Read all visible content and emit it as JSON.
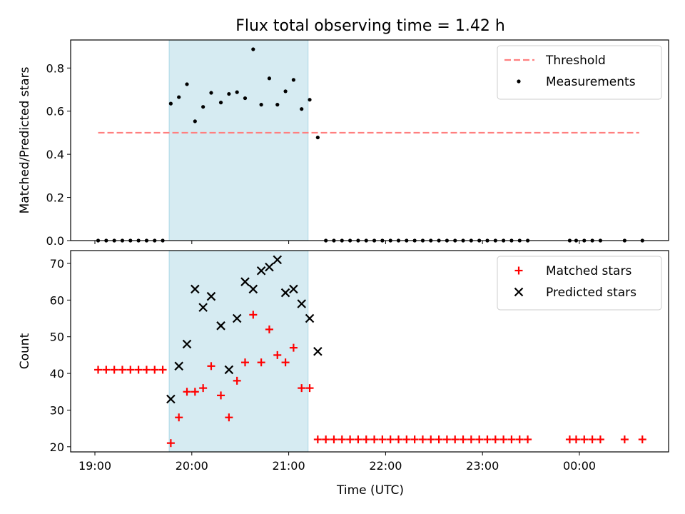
{
  "chart_data": {
    "type": "scatter",
    "title": "Flux total observing time = 1.42 h",
    "xlabel": "Time (UTC)",
    "x_ticks": [
      "19:00",
      "20:00",
      "21:00",
      "22:00",
      "23:00",
      "00:00"
    ],
    "shaded_interval": [
      "19:46",
      "21:12"
    ],
    "panels": [
      {
        "ylabel": "Matched/Predicted stars",
        "ylim": [
          0,
          0.93
        ],
        "y_ticks": [
          "0.0",
          "0.2",
          "0.4",
          "0.6",
          "0.8"
        ],
        "legend_position": "upper right",
        "threshold": {
          "name": "Threshold",
          "value": 0.5,
          "x_range": [
            "19:02",
            "00:37"
          ],
          "color": "#ff7f7f"
        },
        "series": [
          {
            "name": "Measurements",
            "marker": "dot",
            "color": "#000000",
            "points": [
              [
                "19:02",
                0
              ],
              [
                "19:07",
                0
              ],
              [
                "19:12",
                0
              ],
              [
                "19:17",
                0
              ],
              [
                "19:22",
                0
              ],
              [
                "19:27",
                0
              ],
              [
                "19:32",
                0
              ],
              [
                "19:37",
                0
              ],
              [
                "19:42",
                0
              ],
              [
                "19:47",
                0.635
              ],
              [
                "19:52",
                0.665
              ],
              [
                "19:57",
                0.725
              ],
              [
                "20:02",
                0.553
              ],
              [
                "20:07",
                0.62
              ],
              [
                "20:12",
                0.685
              ],
              [
                "20:18",
                0.64
              ],
              [
                "20:23",
                0.68
              ],
              [
                "20:28",
                0.688
              ],
              [
                "20:33",
                0.66
              ],
              [
                "20:38",
                0.887
              ],
              [
                "20:43",
                0.63
              ],
              [
                "20:48",
                0.752
              ],
              [
                "20:53",
                0.63
              ],
              [
                "20:58",
                0.692
              ],
              [
                "21:03",
                0.745
              ],
              [
                "21:08",
                0.61
              ],
              [
                "21:13",
                0.653
              ],
              [
                "21:18",
                0.478
              ],
              [
                "21:23",
                0
              ],
              [
                "21:28",
                0
              ],
              [
                "21:33",
                0
              ],
              [
                "21:38",
                0
              ],
              [
                "21:43",
                0
              ],
              [
                "21:48",
                0
              ],
              [
                "21:53",
                0
              ],
              [
                "21:58",
                0
              ],
              [
                "22:03",
                0
              ],
              [
                "22:08",
                0
              ],
              [
                "22:13",
                0
              ],
              [
                "22:18",
                0
              ],
              [
                "22:23",
                0
              ],
              [
                "22:28",
                0
              ],
              [
                "22:33",
                0
              ],
              [
                "22:38",
                0
              ],
              [
                "22:43",
                0
              ],
              [
                "22:48",
                0
              ],
              [
                "22:53",
                0
              ],
              [
                "22:58",
                0
              ],
              [
                "23:03",
                0
              ],
              [
                "23:08",
                0
              ],
              [
                "23:13",
                0
              ],
              [
                "23:18",
                0
              ],
              [
                "23:23",
                0
              ],
              [
                "23:28",
                0
              ],
              [
                "23:54",
                0
              ],
              [
                "23:58",
                0
              ],
              [
                "00:03",
                0
              ],
              [
                "00:08",
                0
              ],
              [
                "00:13",
                0
              ],
              [
                "00:28",
                0
              ],
              [
                "00:39",
                0
              ]
            ]
          }
        ]
      },
      {
        "ylabel": "Count",
        "ylim": [
          18.6,
          73.5
        ],
        "y_ticks": [
          "20",
          "30",
          "40",
          "50",
          "60",
          "70"
        ],
        "legend_position": "upper right",
        "series": [
          {
            "name": "Matched stars",
            "marker": "plus",
            "color": "#ff0000",
            "points": [
              [
                "19:02",
                41
              ],
              [
                "19:07",
                41
              ],
              [
                "19:12",
                41
              ],
              [
                "19:17",
                41
              ],
              [
                "19:22",
                41
              ],
              [
                "19:27",
                41
              ],
              [
                "19:32",
                41
              ],
              [
                "19:37",
                41
              ],
              [
                "19:42",
                41
              ],
              [
                "19:47",
                21
              ],
              [
                "19:52",
                28
              ],
              [
                "19:57",
                35
              ],
              [
                "20:02",
                35
              ],
              [
                "20:07",
                36
              ],
              [
                "20:12",
                42
              ],
              [
                "20:18",
                34
              ],
              [
                "20:23",
                28
              ],
              [
                "20:28",
                38
              ],
              [
                "20:33",
                43
              ],
              [
                "20:38",
                56
              ],
              [
                "20:43",
                43
              ],
              [
                "20:48",
                52
              ],
              [
                "20:53",
                45
              ],
              [
                "20:58",
                43
              ],
              [
                "21:03",
                47
              ],
              [
                "21:08",
                36
              ],
              [
                "21:13",
                36
              ],
              [
                "21:18",
                22
              ],
              [
                "21:23",
                22
              ],
              [
                "21:28",
                22
              ],
              [
                "21:33",
                22
              ],
              [
                "21:38",
                22
              ],
              [
                "21:43",
                22
              ],
              [
                "21:48",
                22
              ],
              [
                "21:53",
                22
              ],
              [
                "21:58",
                22
              ],
              [
                "22:03",
                22
              ],
              [
                "22:08",
                22
              ],
              [
                "22:13",
                22
              ],
              [
                "22:18",
                22
              ],
              [
                "22:23",
                22
              ],
              [
                "22:28",
                22
              ],
              [
                "22:33",
                22
              ],
              [
                "22:38",
                22
              ],
              [
                "22:43",
                22
              ],
              [
                "22:48",
                22
              ],
              [
                "22:53",
                22
              ],
              [
                "22:58",
                22
              ],
              [
                "23:03",
                22
              ],
              [
                "23:08",
                22
              ],
              [
                "23:13",
                22
              ],
              [
                "23:18",
                22
              ],
              [
                "23:23",
                22
              ],
              [
                "23:28",
                22
              ],
              [
                "23:54",
                22
              ],
              [
                "23:58",
                22
              ],
              [
                "00:03",
                22
              ],
              [
                "00:08",
                22
              ],
              [
                "00:13",
                22
              ],
              [
                "00:28",
                22
              ],
              [
                "00:39",
                22
              ]
            ]
          },
          {
            "name": "Predicted stars",
            "marker": "x",
            "color": "#000000",
            "points": [
              [
                "19:47",
                33
              ],
              [
                "19:52",
                42
              ],
              [
                "19:57",
                48
              ],
              [
                "20:02",
                63
              ],
              [
                "20:07",
                58
              ],
              [
                "20:12",
                61
              ],
              [
                "20:18",
                53
              ],
              [
                "20:23",
                41
              ],
              [
                "20:28",
                55
              ],
              [
                "20:33",
                65
              ],
              [
                "20:38",
                63
              ],
              [
                "20:43",
                68
              ],
              [
                "20:48",
                69
              ],
              [
                "20:53",
                71
              ],
              [
                "20:58",
                62
              ],
              [
                "21:03",
                63
              ],
              [
                "21:08",
                59
              ],
              [
                "21:13",
                55
              ],
              [
                "21:18",
                46
              ]
            ]
          }
        ]
      }
    ]
  }
}
